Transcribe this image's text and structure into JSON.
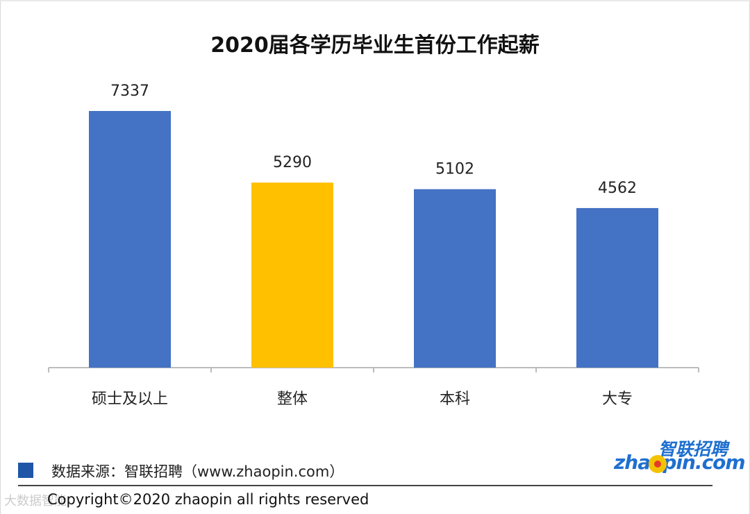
{
  "chart_data": {
    "type": "bar",
    "title": "2020届各学历毕业生首份工作起薪",
    "categories": [
      "硕士及以上",
      "整体",
      "本科",
      "大专"
    ],
    "values": [
      7337,
      5290,
      5102,
      4562
    ],
    "value_labels": [
      "7337",
      "5290",
      "5102",
      "4562"
    ],
    "colors": [
      "#4472c4",
      "#ffc000",
      "#4472c4",
      "#4472c4"
    ],
    "ylim": [
      0,
      7337
    ],
    "grid": false,
    "xlabel": "",
    "ylabel": ""
  },
  "footer": {
    "source": "数据来源：智联招聘（www.zhaopin.com）",
    "copyright": "Copyright©2020 zhaopin  all  rights  reserved",
    "legend_swatch_color": "#1f56a8"
  },
  "logo": {
    "cn_text": "智联招聘",
    "en_text": "zhaopin.com"
  },
  "watermark": "大数据智能"
}
